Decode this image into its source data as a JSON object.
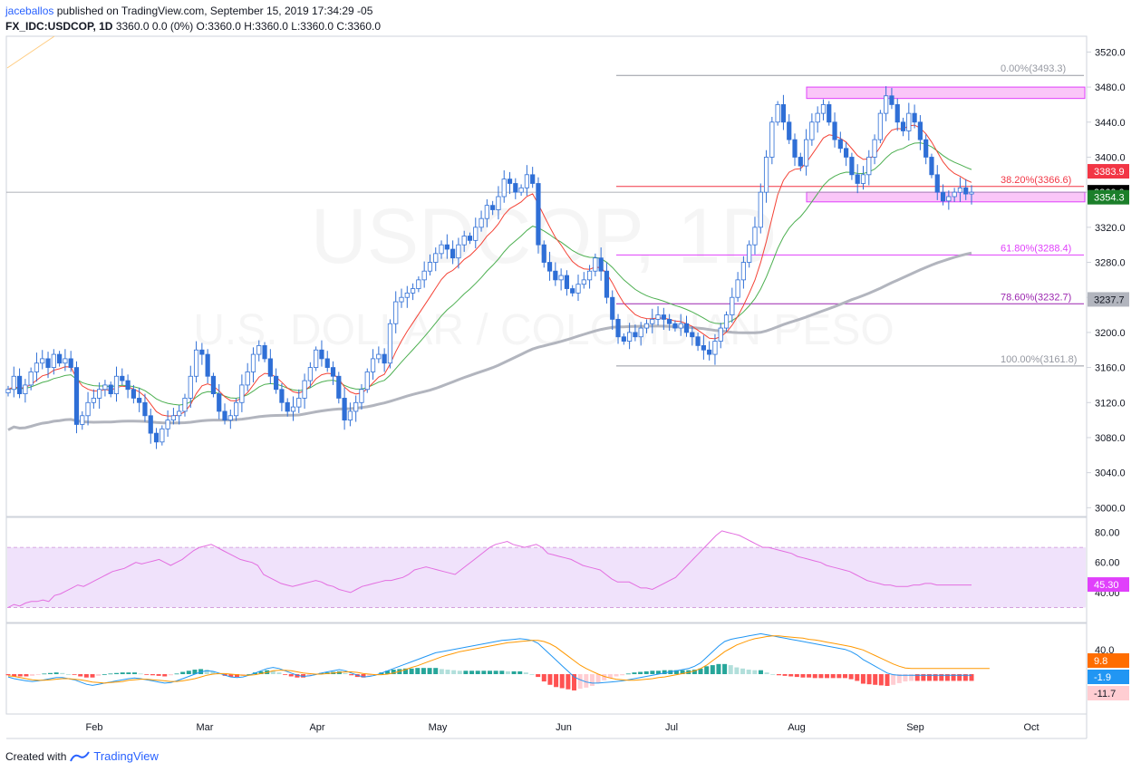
{
  "header": {
    "user": "jaceballos",
    "published": " published on TradingView.com, September 15, 2019 17:34:29 -05",
    "symbol": "FX_IDC:USDCOP, 1D",
    "ohlc": "3360.0 0.0 (0%) O:3360.0 H:3360.0 L:3360.0 C:3360.0"
  },
  "footer": {
    "created_with": "Created with",
    "brand": "TradingView"
  },
  "watermark": {
    "line1": "USDCOP, 1D",
    "line2": "U.S. DOLLAR / COLOMBIAN PESO"
  },
  "colors": {
    "up_candle": "#ffffff",
    "down_candle": "#2f6fd6",
    "ema_fast": "#f44336",
    "ema_mid": "#4caf50",
    "ma_slow": "#b2b5be",
    "fib_red": "#f23645",
    "fib_magenta": "#e040fb",
    "fib_purple": "#9c27b0",
    "zone": "#f8a8f4",
    "rsi_line": "#e36ee0",
    "rsi_band": "#f0e2fb",
    "macd_line": "#2196f3",
    "signal_line": "#ff9800",
    "hist_up_strong": "#26a69a",
    "hist_up_weak": "#b2dfdb",
    "hist_down_strong": "#ff5252",
    "hist_down_weak": "#ffcdd2"
  },
  "chart_data": [
    {
      "type": "candlestick",
      "title": "FX_IDC:USDCOP, 1D",
      "y_axis_ticks": [
        "3000.0",
        "3040.0",
        "3080.0",
        "3120.0",
        "3160.0",
        "3200.0",
        "3240.0",
        "3280.0",
        "3320.0",
        "3360.0",
        "3400.0",
        "3440.0",
        "3480.0",
        "3520.0"
      ],
      "ylim": [
        2990,
        3538
      ],
      "x_axis_ticks": [
        "Feb",
        "Mar",
        "Apr",
        "May",
        "Jun",
        "Jul",
        "Aug",
        "Sep",
        "Oct"
      ],
      "closes": [
        3135,
        3150,
        3130,
        3140,
        3155,
        3165,
        3170,
        3160,
        3175,
        3165,
        3170,
        3160,
        3095,
        3105,
        3120,
        3125,
        3135,
        3140,
        3130,
        3150,
        3145,
        3135,
        3125,
        3120,
        3105,
        3085,
        3075,
        3090,
        3100,
        3105,
        3110,
        3125,
        3150,
        3180,
        3175,
        3150,
        3130,
        3110,
        3100,
        3105,
        3120,
        3140,
        3155,
        3175,
        3185,
        3170,
        3150,
        3135,
        3120,
        3110,
        3115,
        3125,
        3145,
        3160,
        3180,
        3170,
        3160,
        3150,
        3125,
        3100,
        3110,
        3120,
        3135,
        3155,
        3170,
        3175,
        3165,
        3210,
        3235,
        3240,
        3245,
        3250,
        3260,
        3270,
        3280,
        3290,
        3300,
        3295,
        3285,
        3300,
        3310,
        3305,
        3320,
        3330,
        3345,
        3340,
        3355,
        3375,
        3370,
        3360,
        3365,
        3380,
        3370,
        3300,
        3280,
        3270,
        3260,
        3265,
        3250,
        3245,
        3255,
        3260,
        3270,
        3285,
        3270,
        3240,
        3215,
        3195,
        3190,
        3200,
        3195,
        3205,
        3210,
        3215,
        3220,
        3215,
        3210,
        3205,
        3210,
        3200,
        3195,
        3185,
        3180,
        3175,
        3190,
        3205,
        3220,
        3240,
        3260,
        3280,
        3300,
        3320,
        3360,
        3400,
        3440,
        3460,
        3440,
        3420,
        3400,
        3390,
        3420,
        3440,
        3450,
        3460,
        3440,
        3420,
        3410,
        3400,
        3380,
        3370,
        3380,
        3400,
        3420,
        3450,
        3470,
        3460,
        3440,
        3430,
        3450,
        3440,
        3420,
        3400,
        3380,
        3360,
        3350,
        3355,
        3360,
        3365,
        3358,
        3360
      ],
      "indicators": [
        {
          "name": "EMA fast",
          "last": 3383.9
        },
        {
          "name": "EMA mid",
          "last": 3354.3
        },
        {
          "name": "MA slow",
          "last": 3237.7
        },
        {
          "name": "Last price",
          "last": 3360.0
        }
      ],
      "fibonacci": [
        {
          "label": "0.00%(3493.3)",
          "price": 3493.3
        },
        {
          "label": "38.20%(3366.6)",
          "price": 3366.6
        },
        {
          "label": "61.80%(3288.4)",
          "price": 3288.4
        },
        {
          "label": "78.60%(3232.7)",
          "price": 3232.7
        },
        {
          "label": "100.00%(3161.8)",
          "price": 3161.8
        }
      ],
      "zones": [
        {
          "from": 3467,
          "to": 3480
        },
        {
          "from": 3349,
          "to": 3360
        }
      ],
      "price_labels": [
        "3383.9",
        "3360.0",
        "3354.3",
        "3237.7"
      ]
    },
    {
      "type": "line",
      "name": "RSI",
      "y_axis_ticks": [
        "40.00",
        "60.00",
        "80.00"
      ],
      "band": [
        30,
        70
      ],
      "last": "45.30",
      "values": [
        30,
        32,
        31,
        33,
        34,
        34,
        35,
        34,
        38,
        39,
        41,
        43,
        45,
        44,
        46,
        48,
        50,
        52,
        54,
        55,
        56,
        58,
        60,
        59,
        60,
        61,
        62,
        60,
        58,
        60,
        62,
        65,
        68,
        70,
        71,
        72,
        70,
        68,
        66,
        64,
        62,
        61,
        60,
        58,
        52,
        50,
        48,
        46,
        45,
        44,
        45,
        46,
        47,
        48,
        47,
        45,
        44,
        42,
        41,
        40,
        42,
        44,
        45,
        46,
        47,
        48,
        48,
        49,
        50,
        52,
        55,
        56,
        57,
        56,
        55,
        54,
        53,
        52,
        55,
        58,
        61,
        64,
        67,
        70,
        72,
        73,
        74,
        72,
        71,
        70,
        71,
        72,
        70,
        66,
        65,
        64,
        63,
        62,
        60,
        58,
        57,
        56,
        55,
        52,
        49,
        47,
        47,
        47,
        45,
        43,
        43,
        42,
        44,
        46,
        48,
        50,
        54,
        58,
        62,
        66,
        70,
        74,
        78,
        81,
        80,
        79,
        78,
        76,
        74,
        72,
        70,
        70,
        69,
        68,
        67,
        66,
        64,
        63,
        62,
        61,
        60,
        58,
        57,
        56,
        55,
        54,
        52,
        50,
        48,
        47,
        46,
        45,
        45,
        44,
        44,
        44,
        45,
        45,
        46,
        46,
        45,
        45,
        45,
        45,
        45,
        45,
        45
      ]
    },
    {
      "type": "line",
      "name": "MACD",
      "y_axis_ticks": [
        "40.0"
      ],
      "last_macd": "-1.9",
      "last_signal": "9.8",
      "last_hist": "-11.7",
      "macd": [
        -5,
        -8,
        -10,
        -12,
        -13,
        -12,
        -10,
        -8,
        -6,
        -6,
        -8,
        -10,
        -14,
        -18,
        -20,
        -18,
        -16,
        -14,
        -12,
        -10,
        -8,
        -7,
        -8,
        -10,
        -12,
        -14,
        -16,
        -15,
        -12,
        -8,
        -4,
        0,
        4,
        6,
        5,
        2,
        -2,
        -5,
        -6,
        -5,
        -2,
        2,
        6,
        10,
        12,
        10,
        6,
        2,
        -2,
        -4,
        -3,
        -1,
        2,
        4,
        6,
        8,
        6,
        2,
        -2,
        -5,
        -4,
        -2,
        2,
        6,
        10,
        14,
        18,
        22,
        26,
        30,
        34,
        38,
        40,
        42,
        44,
        46,
        48,
        50,
        52,
        54,
        56,
        58,
        60,
        61,
        62,
        63,
        62,
        60,
        55,
        45,
        35,
        25,
        15,
        5,
        -5,
        -10,
        -14,
        -16,
        -16,
        -15,
        -14,
        -13,
        -12,
        -10,
        -8,
        -6,
        -4,
        -2,
        0,
        2,
        4,
        6,
        8,
        10,
        14,
        20,
        30,
        40,
        50,
        58,
        62,
        64,
        66,
        68,
        70,
        72,
        70,
        68,
        66,
        64,
        62,
        60,
        58,
        56,
        54,
        52,
        50,
        48,
        46,
        44,
        40,
        34,
        26,
        20,
        14,
        8,
        2,
        -1,
        -2,
        -2,
        -2,
        -2,
        -2,
        -2,
        -2,
        -2,
        -2,
        -2,
        -2,
        -2,
        -2
      ],
      "signal": [
        -3,
        -4,
        -6,
        -8,
        -10,
        -11,
        -11,
        -10,
        -9,
        -8,
        -8,
        -9,
        -10,
        -12,
        -14,
        -15,
        -16,
        -15,
        -14,
        -13,
        -11,
        -10,
        -9,
        -9,
        -10,
        -11,
        -12,
        -13,
        -13,
        -12,
        -10,
        -8,
        -5,
        -2,
        0,
        1,
        1,
        0,
        -1,
        -2,
        -2,
        -1,
        1,
        3,
        6,
        7,
        7,
        6,
        4,
        2,
        1,
        0,
        0,
        1,
        2,
        3,
        4,
        4,
        3,
        1,
        0,
        -1,
        -1,
        0,
        2,
        5,
        8,
        12,
        15,
        19,
        23,
        27,
        31,
        34,
        37,
        40,
        42,
        44,
        46,
        48,
        50,
        52,
        54,
        56,
        57,
        58,
        59,
        60,
        60,
        58,
        54,
        48,
        40,
        32,
        24,
        16,
        10,
        5,
        0,
        -4,
        -7,
        -9,
        -10,
        -11,
        -11,
        -10,
        -9,
        -8,
        -6,
        -5,
        -3,
        -1,
        1,
        3,
        6,
        10,
        16,
        24,
        32,
        40,
        46,
        52,
        56,
        60,
        63,
        65,
        67,
        68,
        68,
        67,
        66,
        65,
        64,
        62,
        61,
        59,
        57,
        55,
        53,
        51,
        49,
        46,
        43,
        38,
        33,
        28,
        23,
        18,
        14,
        11,
        10,
        10,
        10,
        10,
        10,
        10,
        10,
        10,
        10,
        10,
        10,
        10,
        10,
        10
      ]
    }
  ]
}
